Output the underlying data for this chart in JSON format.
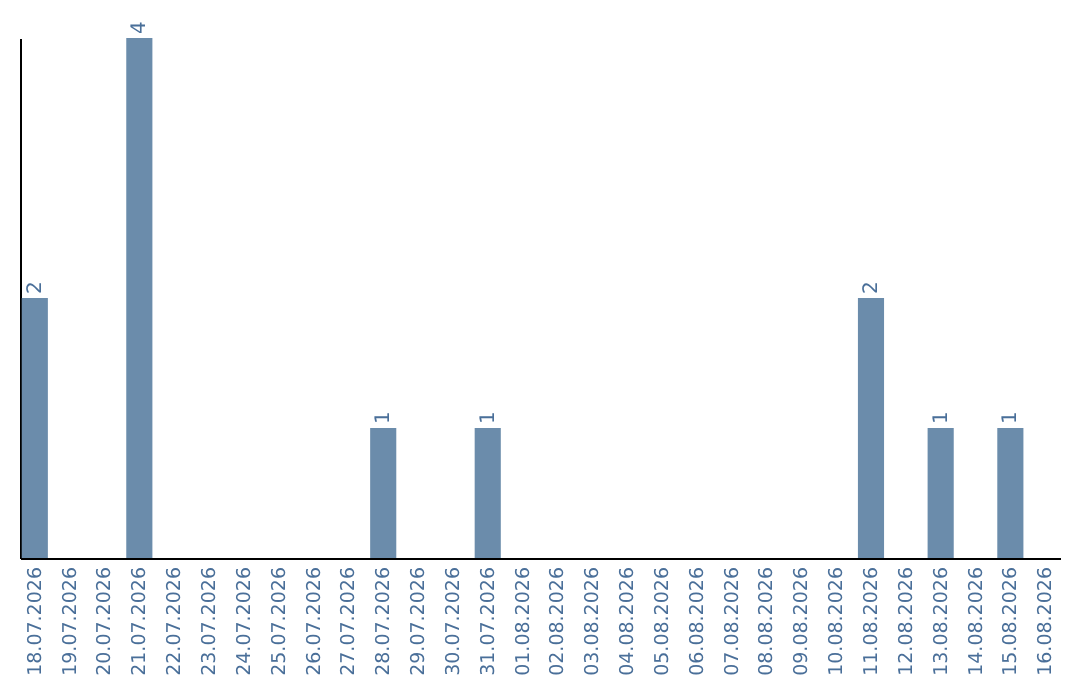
{
  "chart_data": {
    "type": "bar",
    "categories": [
      "18.07.2026",
      "19.07.2026",
      "20.07.2026",
      "21.07.2026",
      "22.07.2026",
      "23.07.2026",
      "24.07.2026",
      "25.07.2026",
      "26.07.2026",
      "27.07.2026",
      "28.07.2026",
      "29.07.2026",
      "30.07.2026",
      "31.07.2026",
      "01.08.2026",
      "02.08.2026",
      "03.08.2026",
      "04.08.2026",
      "05.08.2026",
      "06.08.2026",
      "07.08.2026",
      "08.08.2026",
      "09.08.2026",
      "10.08.2026",
      "11.08.2026",
      "12.08.2026",
      "13.08.2026",
      "14.08.2026",
      "15.08.2026",
      "16.08.2026"
    ],
    "values": [
      2,
      0,
      0,
      4,
      0,
      0,
      0,
      0,
      0,
      0,
      1,
      0,
      0,
      1,
      0,
      0,
      0,
      0,
      0,
      0,
      0,
      0,
      0,
      0,
      2,
      0,
      1,
      0,
      1,
      0
    ],
    "value_labels": [
      "2",
      null,
      null,
      "4",
      null,
      null,
      null,
      null,
      null,
      null,
      "1",
      null,
      null,
      "1",
      null,
      null,
      null,
      null,
      null,
      null,
      null,
      null,
      null,
      null,
      "2",
      null,
      "1",
      null,
      "1",
      null
    ],
    "color": "#6b8cab",
    "tick_labels": "x"
  }
}
